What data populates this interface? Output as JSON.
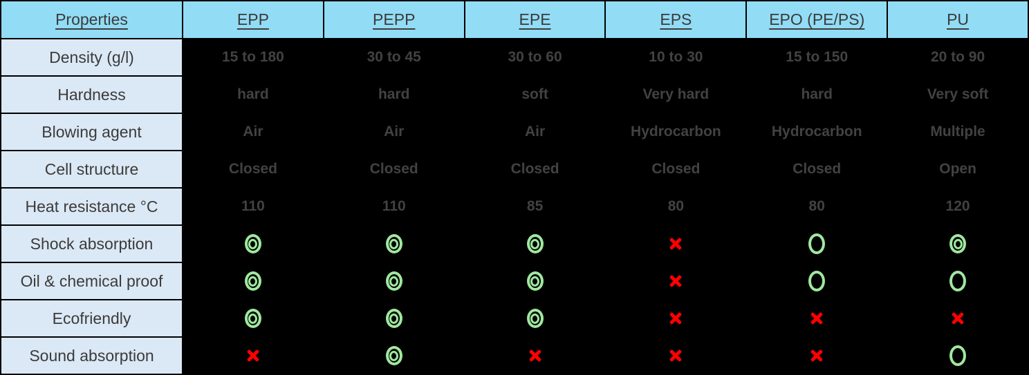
{
  "chart_data": {
    "type": "table",
    "title": "Foam material properties comparison",
    "corner_label": "Properties",
    "columns": [
      "EPP",
      "PEPP",
      "EPE",
      "EPS",
      "EPO (PE/PS)",
      "PU"
    ],
    "rows": [
      {
        "label": "Density (g/l)",
        "kind": "text",
        "values": [
          "15 to 180",
          "30 to 45",
          "30 to 60",
          "10 to 30",
          "15 to 150",
          "20 to 90"
        ]
      },
      {
        "label": "Hardness",
        "kind": "text",
        "values": [
          "hard",
          "hard",
          "soft",
          "Very hard",
          "hard",
          "Very soft"
        ]
      },
      {
        "label": "Blowing agent",
        "kind": "text",
        "values": [
          "Air",
          "Air",
          "Air",
          "Hydrocarbon",
          "Hydrocarbon",
          "Multiple"
        ]
      },
      {
        "label": "Cell structure",
        "kind": "text",
        "values": [
          "Closed",
          "Closed",
          "Closed",
          "Closed",
          "Closed",
          "Open"
        ]
      },
      {
        "label": "Heat resistance °C",
        "kind": "text",
        "values": [
          "110",
          "110",
          "85",
          "80",
          "80",
          "120"
        ]
      },
      {
        "label": "Shock absorption",
        "kind": "symbol",
        "values": [
          "double_circle",
          "double_circle",
          "double_circle",
          "cross",
          "circle",
          "double_circle"
        ]
      },
      {
        "label": "Oil & chemical proof",
        "kind": "symbol",
        "values": [
          "double_circle",
          "double_circle",
          "double_circle",
          "cross",
          "circle",
          "circle"
        ]
      },
      {
        "label": "Ecofriendly",
        "kind": "symbol",
        "values": [
          "double_circle",
          "double_circle",
          "double_circle",
          "cross",
          "cross",
          "cross"
        ]
      },
      {
        "label": "Sound absorption",
        "kind": "symbol",
        "values": [
          "cross",
          "double_circle",
          "cross",
          "cross",
          "cross",
          "circle"
        ]
      }
    ],
    "symbol_legend": {
      "double_circle": "excellent (green bullseye)",
      "circle": "good (green ring)",
      "cross": "no (red x)"
    }
  },
  "colors": {
    "header_bg": "#92DCF5",
    "label_bg": "#DBE8F5",
    "data_bg": "#000000",
    "data_text": "#424242",
    "header_text": "#3B3B3B",
    "symbol_green": "#9FE89F",
    "symbol_red": "#FF0000"
  }
}
